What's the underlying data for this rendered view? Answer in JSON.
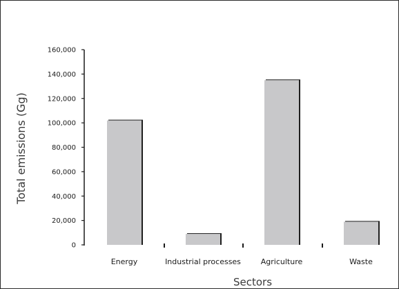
{
  "chart_data": {
    "type": "bar",
    "title": "",
    "xlabel": "Sectors",
    "ylabel": "Total emissions (Gg)",
    "categories": [
      "Energy",
      "Industrial processes",
      "Agriculture",
      "Waste"
    ],
    "values": [
      102000,
      9000,
      135000,
      19000
    ],
    "ylim": [
      0,
      160000
    ],
    "yticks": [
      0,
      20000,
      40000,
      60000,
      80000,
      100000,
      120000,
      140000,
      160000
    ],
    "ytick_labels": [
      "0",
      "20,000",
      "40,000",
      "60,000",
      "80,000",
      "100,000",
      "120,000",
      "140,000",
      "160,000"
    ],
    "grid": false,
    "legend": "none",
    "bar_color": "#c8c8ca",
    "bar_shadow_color": "#1e1e1e"
  }
}
